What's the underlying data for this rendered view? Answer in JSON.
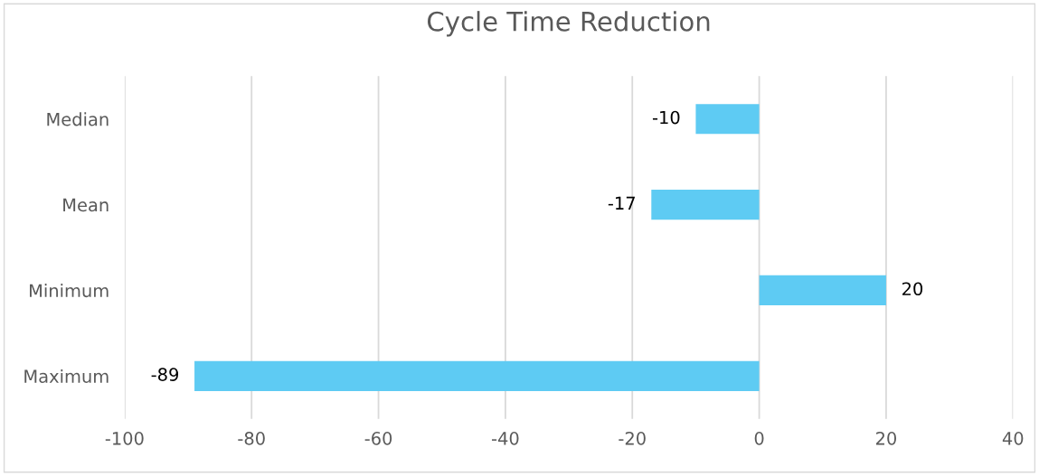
{
  "chart_data": {
    "type": "bar",
    "orientation": "horizontal",
    "title": "Cycle Time Reduction",
    "categories": [
      "Median",
      "Mean",
      "Minimum",
      "Maximum"
    ],
    "values": [
      -10,
      -17,
      20,
      -89
    ],
    "color": "#5ecbf3",
    "xlim": [
      -100,
      40
    ],
    "xticks": [
      -100,
      -80,
      -60,
      -40,
      -20,
      0,
      20,
      40
    ],
    "grid": "x",
    "data_labels": true
  }
}
